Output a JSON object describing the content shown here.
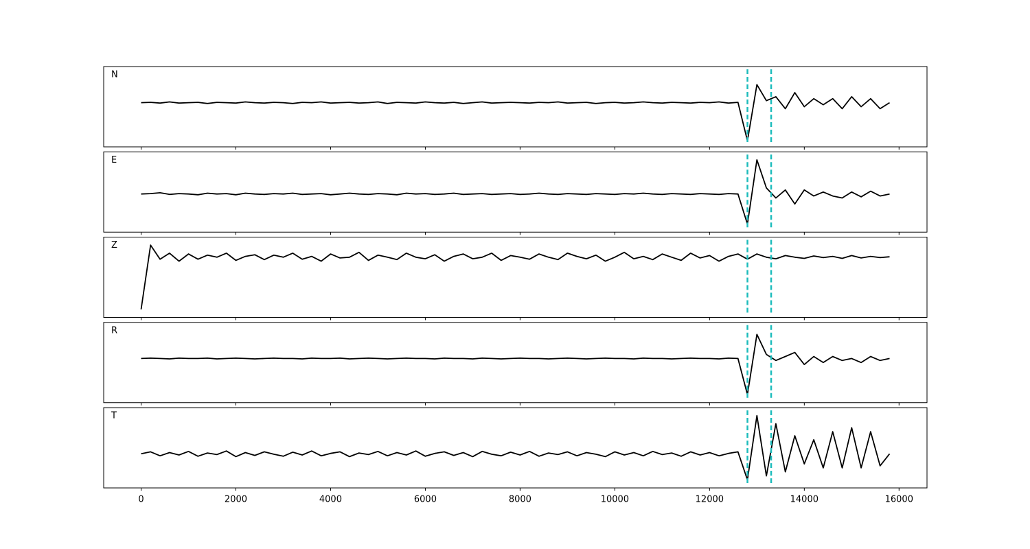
{
  "chart_data": [
    {
      "type": "line",
      "label": "N",
      "color": "#000000",
      "vline_color": "#1cbcbc",
      "x": [
        0,
        200,
        400,
        600,
        800,
        1000,
        1200,
        1400,
        1600,
        1800,
        2000,
        2200,
        2400,
        2600,
        2800,
        3000,
        3200,
        3400,
        3600,
        3800,
        4000,
        4200,
        4400,
        4600,
        4800,
        5000,
        5200,
        5400,
        5600,
        5800,
        6000,
        6200,
        6400,
        6600,
        6800,
        7000,
        7200,
        7400,
        7600,
        7800,
        8000,
        8200,
        8400,
        8600,
        8800,
        9000,
        9200,
        9400,
        9600,
        9800,
        10000,
        10200,
        10400,
        10600,
        10800,
        11000,
        11200,
        11400,
        11600,
        11800,
        12000,
        12200,
        12400,
        12600,
        12800,
        13000,
        13200,
        13400,
        13600,
        13800,
        14000,
        14200,
        14400,
        14600,
        14800,
        15000,
        15200,
        15400,
        15600,
        15800
      ],
      "values": [
        0.1,
        0.11,
        0.09,
        0.12,
        0.09,
        0.1,
        0.11,
        0.08,
        0.11,
        0.1,
        0.09,
        0.12,
        0.1,
        0.09,
        0.11,
        0.1,
        0.08,
        0.11,
        0.1,
        0.12,
        0.09,
        0.1,
        0.11,
        0.09,
        0.1,
        0.12,
        0.08,
        0.11,
        0.1,
        0.09,
        0.12,
        0.1,
        0.09,
        0.11,
        0.08,
        0.1,
        0.12,
        0.09,
        0.1,
        0.11,
        0.1,
        0.09,
        0.11,
        0.1,
        0.12,
        0.09,
        0.1,
        0.11,
        0.08,
        0.1,
        0.11,
        0.09,
        0.1,
        0.12,
        0.1,
        0.09,
        0.11,
        0.1,
        0.09,
        0.11,
        0.1,
        0.12,
        0.09,
        0.11,
        -0.85,
        0.55,
        0.15,
        0.25,
        -0.05,
        0.35,
        0.0,
        0.2,
        0.05,
        0.2,
        -0.05,
        0.25,
        0.0,
        0.2,
        -0.05,
        0.1
      ],
      "vlines": [
        12800,
        13300
      ],
      "xlim": [
        -790,
        16590
      ],
      "ylim": [
        -1,
        1
      ],
      "xticks": [
        0,
        2000,
        4000,
        6000,
        8000,
        10000,
        12000,
        14000,
        16000
      ]
    },
    {
      "type": "line",
      "label": "E",
      "color": "#000000",
      "vline_color": "#1cbcbc",
      "x": [
        0,
        200,
        400,
        600,
        800,
        1000,
        1200,
        1400,
        1600,
        1800,
        2000,
        2200,
        2400,
        2600,
        2800,
        3000,
        3200,
        3400,
        3600,
        3800,
        4000,
        4200,
        4400,
        4600,
        4800,
        5000,
        5200,
        5400,
        5600,
        5800,
        6000,
        6200,
        6400,
        6600,
        6800,
        7000,
        7200,
        7400,
        7600,
        7800,
        8000,
        8200,
        8400,
        8600,
        8800,
        9000,
        9200,
        9400,
        9600,
        9800,
        10000,
        10200,
        10400,
        10600,
        10800,
        11000,
        11200,
        11400,
        11600,
        11800,
        12000,
        12200,
        12400,
        12600,
        12800,
        13000,
        13200,
        13400,
        13600,
        13800,
        14000,
        14200,
        14400,
        14600,
        14800,
        15000,
        15200,
        15400,
        15600,
        15800
      ],
      "values": [
        -0.05,
        -0.04,
        -0.02,
        -0.06,
        -0.04,
        -0.05,
        -0.07,
        -0.03,
        -0.05,
        -0.04,
        -0.07,
        -0.03,
        -0.05,
        -0.06,
        -0.04,
        -0.05,
        -0.03,
        -0.06,
        -0.05,
        -0.04,
        -0.07,
        -0.05,
        -0.03,
        -0.05,
        -0.06,
        -0.04,
        -0.05,
        -0.07,
        -0.03,
        -0.05,
        -0.04,
        -0.06,
        -0.05,
        -0.03,
        -0.06,
        -0.05,
        -0.04,
        -0.06,
        -0.05,
        -0.04,
        -0.06,
        -0.05,
        -0.03,
        -0.05,
        -0.06,
        -0.04,
        -0.05,
        -0.06,
        -0.04,
        -0.05,
        -0.06,
        -0.04,
        -0.05,
        -0.03,
        -0.05,
        -0.06,
        -0.04,
        -0.05,
        -0.06,
        -0.04,
        -0.05,
        -0.06,
        -0.04,
        -0.05,
        -0.8,
        0.8,
        0.1,
        -0.15,
        0.05,
        -0.3,
        0.05,
        -0.1,
        0.0,
        -0.1,
        -0.15,
        0.0,
        -0.12,
        0.02,
        -0.1,
        -0.05
      ],
      "vlines": [
        12800,
        13300
      ],
      "xlim": [
        -790,
        16590
      ],
      "ylim": [
        -1,
        1
      ],
      "xticks": [
        0,
        2000,
        4000,
        6000,
        8000,
        10000,
        12000,
        14000,
        16000
      ]
    },
    {
      "type": "line",
      "label": "Z",
      "color": "#000000",
      "vline_color": "#1cbcbc",
      "x": [
        0,
        200,
        400,
        600,
        800,
        1000,
        1200,
        1400,
        1600,
        1800,
        2000,
        2200,
        2400,
        2600,
        2800,
        3000,
        3200,
        3400,
        3600,
        3800,
        4000,
        4200,
        4400,
        4600,
        4800,
        5000,
        5200,
        5400,
        5600,
        5800,
        6000,
        6200,
        6400,
        6600,
        6800,
        7000,
        7200,
        7400,
        7600,
        7800,
        8000,
        8200,
        8400,
        8600,
        8800,
        9000,
        9200,
        9400,
        9600,
        9800,
        10000,
        10200,
        10400,
        10600,
        10800,
        11000,
        11200,
        11400,
        11600,
        11800,
        12000,
        12200,
        12400,
        12600,
        12800,
        13000,
        13200,
        13400,
        13600,
        13800,
        14000,
        14200,
        14400,
        14600,
        14800,
        15000,
        15200,
        15400,
        15600,
        15800
      ],
      "values": [
        -0.8,
        0.8,
        0.45,
        0.6,
        0.4,
        0.58,
        0.45,
        0.55,
        0.5,
        0.6,
        0.42,
        0.52,
        0.56,
        0.44,
        0.55,
        0.5,
        0.6,
        0.45,
        0.52,
        0.4,
        0.58,
        0.48,
        0.5,
        0.62,
        0.42,
        0.55,
        0.5,
        0.44,
        0.6,
        0.5,
        0.46,
        0.56,
        0.4,
        0.52,
        0.58,
        0.46,
        0.5,
        0.6,
        0.42,
        0.54,
        0.5,
        0.45,
        0.58,
        0.5,
        0.44,
        0.6,
        0.52,
        0.46,
        0.55,
        0.4,
        0.5,
        0.62,
        0.46,
        0.52,
        0.44,
        0.58,
        0.5,
        0.42,
        0.6,
        0.48,
        0.54,
        0.4,
        0.52,
        0.58,
        0.45,
        0.58,
        0.5,
        0.46,
        0.54,
        0.5,
        0.47,
        0.53,
        0.49,
        0.52,
        0.47,
        0.54,
        0.48,
        0.52,
        0.49,
        0.51
      ],
      "vlines": [
        12800,
        13300
      ],
      "xlim": [
        -790,
        16590
      ],
      "ylim": [
        -1,
        1
      ],
      "xticks": [
        0,
        2000,
        4000,
        6000,
        8000,
        10000,
        12000,
        14000,
        16000
      ]
    },
    {
      "type": "line",
      "label": "R",
      "color": "#000000",
      "vline_color": "#1cbcbc",
      "x": [
        0,
        200,
        400,
        600,
        800,
        1000,
        1200,
        1400,
        1600,
        1800,
        2000,
        2200,
        2400,
        2600,
        2800,
        3000,
        3200,
        3400,
        3600,
        3800,
        4000,
        4200,
        4400,
        4600,
        4800,
        5000,
        5200,
        5400,
        5600,
        5800,
        6000,
        6200,
        6400,
        6600,
        6800,
        7000,
        7200,
        7400,
        7600,
        7800,
        8000,
        8200,
        8400,
        8600,
        8800,
        9000,
        9200,
        9400,
        9600,
        9800,
        10000,
        10200,
        10400,
        10600,
        10800,
        11000,
        11200,
        11400,
        11600,
        11800,
        12000,
        12200,
        12400,
        12600,
        12800,
        13000,
        13200,
        13400,
        13600,
        13800,
        14000,
        14200,
        14400,
        14600,
        14800,
        15000,
        15200,
        15400,
        15600,
        15800
      ],
      "values": [
        0.1,
        0.11,
        0.1,
        0.09,
        0.11,
        0.1,
        0.1,
        0.11,
        0.09,
        0.1,
        0.11,
        0.1,
        0.09,
        0.1,
        0.11,
        0.1,
        0.1,
        0.09,
        0.11,
        0.1,
        0.1,
        0.11,
        0.09,
        0.1,
        0.11,
        0.1,
        0.09,
        0.1,
        0.11,
        0.1,
        0.1,
        0.09,
        0.11,
        0.1,
        0.1,
        0.09,
        0.11,
        0.1,
        0.09,
        0.1,
        0.11,
        0.1,
        0.1,
        0.09,
        0.1,
        0.11,
        0.1,
        0.09,
        0.1,
        0.11,
        0.1,
        0.1,
        0.09,
        0.11,
        0.1,
        0.1,
        0.09,
        0.1,
        0.11,
        0.1,
        0.1,
        0.09,
        0.11,
        0.1,
        -0.8,
        0.7,
        0.2,
        0.05,
        0.15,
        0.25,
        -0.05,
        0.15,
        0.0,
        0.15,
        0.05,
        0.1,
        0.0,
        0.15,
        0.05,
        0.1
      ],
      "vlines": [
        12800,
        13300
      ],
      "xlim": [
        -790,
        16590
      ],
      "ylim": [
        -1,
        1
      ],
      "xticks": [
        0,
        2000,
        4000,
        6000,
        8000,
        10000,
        12000,
        14000,
        16000
      ]
    },
    {
      "type": "line",
      "label": "T",
      "color": "#000000",
      "vline_color": "#1cbcbc",
      "x": [
        0,
        200,
        400,
        600,
        800,
        1000,
        1200,
        1400,
        1600,
        1800,
        2000,
        2200,
        2400,
        2600,
        2800,
        3000,
        3200,
        3400,
        3600,
        3800,
        4000,
        4200,
        4400,
        4600,
        4800,
        5000,
        5200,
        5400,
        5600,
        5800,
        6000,
        6200,
        6400,
        6600,
        6800,
        7000,
        7200,
        7400,
        7600,
        7800,
        8000,
        8200,
        8400,
        8600,
        8800,
        9000,
        9200,
        9400,
        9600,
        9800,
        10000,
        10200,
        10400,
        10600,
        10800,
        11000,
        11200,
        11400,
        11600,
        11800,
        12000,
        12200,
        12400,
        12600,
        12800,
        13000,
        13200,
        13400,
        13600,
        13800,
        14000,
        14200,
        14400,
        14600,
        14800,
        15000,
        15200,
        15400,
        15600,
        15800
      ],
      "values": [
        -0.15,
        -0.1,
        -0.2,
        -0.12,
        -0.18,
        -0.09,
        -0.21,
        -0.13,
        -0.17,
        -0.08,
        -0.22,
        -0.12,
        -0.19,
        -0.1,
        -0.16,
        -0.21,
        -0.11,
        -0.18,
        -0.08,
        -0.2,
        -0.14,
        -0.1,
        -0.22,
        -0.13,
        -0.17,
        -0.09,
        -0.2,
        -0.12,
        -0.18,
        -0.08,
        -0.21,
        -0.14,
        -0.1,
        -0.19,
        -0.12,
        -0.22,
        -0.09,
        -0.16,
        -0.2,
        -0.11,
        -0.18,
        -0.09,
        -0.21,
        -0.13,
        -0.17,
        -0.1,
        -0.2,
        -0.12,
        -0.16,
        -0.22,
        -0.1,
        -0.18,
        -0.12,
        -0.2,
        -0.09,
        -0.17,
        -0.13,
        -0.21,
        -0.1,
        -0.18,
        -0.12,
        -0.2,
        -0.14,
        -0.1,
        -0.8,
        0.8,
        -0.7,
        0.6,
        -0.6,
        0.3,
        -0.4,
        0.2,
        -0.5,
        0.4,
        -0.5,
        0.5,
        -0.5,
        0.4,
        -0.45,
        -0.15
      ],
      "vlines": [
        12800,
        13300
      ],
      "xlim": [
        -790,
        16590
      ],
      "ylim": [
        -1,
        1
      ],
      "xticks": [
        0,
        2000,
        4000,
        6000,
        8000,
        10000,
        12000,
        14000,
        16000
      ]
    }
  ]
}
